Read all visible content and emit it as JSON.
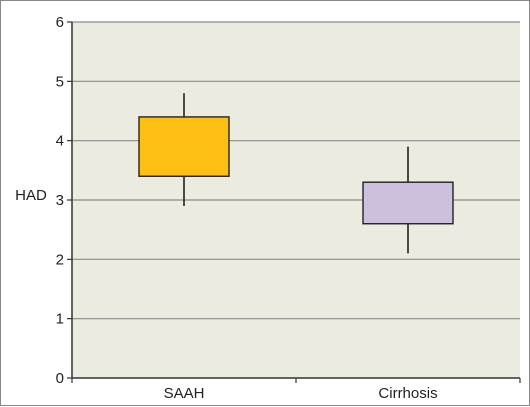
{
  "chart_data": {
    "type": "boxplot",
    "title": "",
    "xlabel": "",
    "ylabel": "HAD",
    "ylim": [
      0,
      6
    ],
    "yticks": [
      "0",
      "1",
      "2",
      "3",
      "4",
      "5",
      "6"
    ],
    "grid": true,
    "legend": "none",
    "categories": [
      "SAAH",
      "Cirrhosis"
    ],
    "boxes": [
      {
        "category": "SAAH",
        "whisker_low": 2.9,
        "q1": 3.4,
        "q3": 4.4,
        "whisker_high": 4.8,
        "color": "#FDBF12"
      },
      {
        "category": "Cirrhosis",
        "whisker_low": 2.1,
        "q1": 2.6,
        "q3": 3.3,
        "whisker_high": 3.9,
        "color": "#CCC0DE"
      }
    ],
    "colors": {
      "plot_background": "#ECEBDF",
      "gridline": "#8C8C8C",
      "axis": "#333333"
    }
  }
}
